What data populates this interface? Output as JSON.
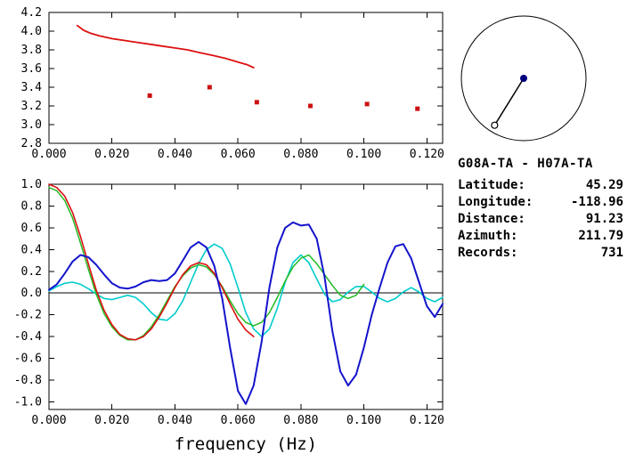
{
  "colors": {
    "frame": "#000000",
    "red": "#dd1111",
    "green": "#22bb22",
    "blue": "#1414cc",
    "cyan": "#00cccc",
    "navy": "#000080",
    "marker": "#cc1111"
  },
  "info_panel": {
    "title": "G08A-TA - H07A-TA",
    "rows": [
      {
        "label": "Latitude:",
        "value": "45.29"
      },
      {
        "label": "Longitude:",
        "value": "-118.96"
      },
      {
        "label": "Distance:",
        "value": "91.23"
      },
      {
        "label": "Azimuth:",
        "value": "211.79"
      },
      {
        "label": "Records:",
        "value": "731"
      }
    ]
  },
  "azimuth_diagram": {
    "azimuth_deg": 211.79,
    "circle_radius": 70,
    "pointer_length": 62,
    "marker": "open-circle"
  },
  "chart_data": [
    {
      "id": "phase-velocity-dispersion",
      "type": "line",
      "title": "",
      "xlabel": "",
      "ylabel": "",
      "xlim": [
        0,
        0.125
      ],
      "ylim": [
        2.8,
        4.2
      ],
      "grid": false,
      "zero_line": false,
      "xticks": [
        0,
        0.02,
        0.04,
        0.06,
        0.08,
        0.1,
        0.12
      ],
      "xtick_labels": [
        "0.000",
        "0.020",
        "0.040",
        "0.060",
        "0.080",
        "0.100",
        "0.120"
      ],
      "yticks": [
        2.8,
        3.0,
        3.2,
        3.4,
        3.6,
        3.8,
        4.0,
        4.2
      ],
      "ytick_labels": [
        "2.8",
        "3.0",
        "3.2",
        "3.4",
        "3.6",
        "3.8",
        "4.0",
        "4.2"
      ],
      "series": [
        {
          "name": "reference-dispersion-curve",
          "style": "line",
          "color": "#dd1111",
          "width": 1.8,
          "x": [
            0.009,
            0.011,
            0.013,
            0.016,
            0.02,
            0.024,
            0.028,
            0.032,
            0.036,
            0.04,
            0.044,
            0.048,
            0.052,
            0.056,
            0.06,
            0.063,
            0.065
          ],
          "y": [
            4.06,
            4.01,
            3.98,
            3.95,
            3.92,
            3.9,
            3.88,
            3.86,
            3.84,
            3.82,
            3.8,
            3.77,
            3.74,
            3.71,
            3.67,
            3.64,
            3.61
          ]
        },
        {
          "name": "measured-phase-velocity-points",
          "style": "markers",
          "color": "#cc1111",
          "x": [
            0.032,
            0.051,
            0.066,
            0.083,
            0.101,
            0.117
          ],
          "y": [
            3.31,
            3.4,
            3.24,
            3.2,
            3.22,
            3.17
          ]
        }
      ]
    },
    {
      "id": "cross-correlation-waveforms",
      "type": "line",
      "title": "",
      "xlabel": "frequency (Hz)",
      "ylabel": "",
      "xlim": [
        0,
        0.125
      ],
      "ylim": [
        -1.07,
        1.0
      ],
      "grid": false,
      "zero_line": true,
      "xticks": [
        0,
        0.02,
        0.04,
        0.06,
        0.08,
        0.1,
        0.12
      ],
      "xtick_labels": [
        "0.000",
        "0.020",
        "0.040",
        "0.060",
        "0.080",
        "0.100",
        "0.120"
      ],
      "yticks": [
        -1.0,
        -0.8,
        -0.6,
        -0.4,
        -0.2,
        0.0,
        0.2,
        0.4,
        0.6,
        0.8,
        1.0
      ],
      "ytick_labels": [
        "-1.0",
        "-0.8",
        "-0.6",
        "-0.4",
        "-0.2",
        "0.0",
        "0.2",
        "0.4",
        "0.6",
        "0.8",
        "1.0"
      ],
      "series": [
        {
          "name": "cyan-trace",
          "style": "line",
          "color": "#00cccc",
          "width": 1.6,
          "x": [
            0,
            0.0025,
            0.005,
            0.0075,
            0.01,
            0.0125,
            0.015,
            0.0175,
            0.02,
            0.0225,
            0.025,
            0.0275,
            0.03,
            0.0325,
            0.035,
            0.0375,
            0.04,
            0.0425,
            0.045,
            0.0475,
            0.05,
            0.0525,
            0.055,
            0.0575,
            0.06,
            0.0625,
            0.065,
            0.0675,
            0.07,
            0.0725,
            0.075,
            0.0775,
            0.08,
            0.0825,
            0.085,
            0.0875,
            0.09,
            0.0925,
            0.095,
            0.0975,
            0.1,
            0.1025,
            0.105,
            0.1075,
            0.11,
            0.1125,
            0.115,
            0.1175,
            0.12,
            0.1225,
            0.125
          ],
          "y": [
            0.02,
            0.06,
            0.09,
            0.1,
            0.08,
            0.04,
            -0.01,
            -0.05,
            -0.06,
            -0.04,
            -0.02,
            -0.04,
            -0.1,
            -0.18,
            -0.24,
            -0.25,
            -0.19,
            -0.07,
            0.1,
            0.27,
            0.4,
            0.45,
            0.41,
            0.27,
            0.05,
            -0.18,
            -0.33,
            -0.4,
            -0.33,
            -0.14,
            0.1,
            0.28,
            0.35,
            0.28,
            0.13,
            -0.01,
            -0.08,
            -0.06,
            0.01,
            0.06,
            0.06,
            0.01,
            -0.05,
            -0.08,
            -0.05,
            0.01,
            0.05,
            0.01,
            -0.05,
            -0.08,
            -0.04
          ]
        },
        {
          "name": "green-trace",
          "style": "line",
          "color": "#22bb22",
          "width": 1.5,
          "x": [
            0,
            0.0025,
            0.005,
            0.0075,
            0.01,
            0.0125,
            0.015,
            0.0175,
            0.02,
            0.0225,
            0.025,
            0.0275,
            0.03,
            0.0325,
            0.035,
            0.0375,
            0.04,
            0.0425,
            0.045,
            0.0475,
            0.05,
            0.0525,
            0.055,
            0.0575,
            0.06,
            0.0625,
            0.065,
            0.0675,
            0.07,
            0.0725,
            0.075,
            0.0775,
            0.08,
            0.0825,
            0.085,
            0.0875,
            0.09,
            0.0925,
            0.095,
            0.0975,
            0.1
          ],
          "y": [
            0.97,
            0.94,
            0.85,
            0.69,
            0.46,
            0.22,
            -0.01,
            -0.19,
            -0.31,
            -0.39,
            -0.43,
            -0.43,
            -0.39,
            -0.31,
            -0.2,
            -0.07,
            0.06,
            0.16,
            0.23,
            0.26,
            0.24,
            0.17,
            0.06,
            -0.07,
            -0.19,
            -0.27,
            -0.3,
            -0.27,
            -0.18,
            -0.04,
            0.11,
            0.24,
            0.32,
            0.35,
            0.27,
            0.17,
            0.07,
            -0.02,
            -0.05,
            -0.02,
            0.08
          ]
        },
        {
          "name": "red-trace",
          "style": "line",
          "color": "#dd1111",
          "width": 1.6,
          "x": [
            0,
            0.0025,
            0.005,
            0.0075,
            0.01,
            0.0125,
            0.015,
            0.0175,
            0.02,
            0.0225,
            0.025,
            0.0275,
            0.03,
            0.0325,
            0.035,
            0.0375,
            0.04,
            0.0425,
            0.045,
            0.0475,
            0.05,
            0.0525,
            0.055,
            0.0575,
            0.06,
            0.0625,
            0.065
          ],
          "y": [
            1.0,
            0.97,
            0.89,
            0.74,
            0.52,
            0.27,
            0.03,
            -0.16,
            -0.29,
            -0.38,
            -0.42,
            -0.43,
            -0.4,
            -0.33,
            -0.22,
            -0.09,
            0.05,
            0.17,
            0.25,
            0.28,
            0.26,
            0.18,
            0.05,
            -0.1,
            -0.24,
            -0.34,
            -0.4
          ]
        },
        {
          "name": "blue-trace",
          "style": "line",
          "color": "#1414cc",
          "width": 2,
          "x": [
            0,
            0.0025,
            0.005,
            0.0075,
            0.01,
            0.0125,
            0.015,
            0.0175,
            0.02,
            0.0225,
            0.025,
            0.0275,
            0.03,
            0.0325,
            0.035,
            0.0375,
            0.04,
            0.0425,
            0.045,
            0.0475,
            0.05,
            0.0525,
            0.055,
            0.0575,
            0.06,
            0.0625,
            0.065,
            0.0675,
            0.07,
            0.0725,
            0.075,
            0.0775,
            0.08,
            0.0825,
            0.085,
            0.0875,
            0.09,
            0.0925,
            0.095,
            0.0975,
            0.1,
            0.1025,
            0.105,
            0.1075,
            0.11,
            0.1125,
            0.115,
            0.1175,
            0.12,
            0.1225,
            0.125
          ],
          "y": [
            0.03,
            0.08,
            0.18,
            0.29,
            0.35,
            0.33,
            0.26,
            0.17,
            0.09,
            0.05,
            0.04,
            0.06,
            0.1,
            0.12,
            0.11,
            0.12,
            0.18,
            0.3,
            0.42,
            0.47,
            0.42,
            0.25,
            -0.05,
            -0.5,
            -0.9,
            -1.02,
            -0.85,
            -0.45,
            0.05,
            0.42,
            0.6,
            0.65,
            0.62,
            0.63,
            0.5,
            0.15,
            -0.35,
            -0.72,
            -0.85,
            -0.75,
            -0.5,
            -0.2,
            0.05,
            0.28,
            0.43,
            0.45,
            0.32,
            0.1,
            -0.12,
            -0.22,
            -0.1
          ]
        }
      ]
    }
  ]
}
